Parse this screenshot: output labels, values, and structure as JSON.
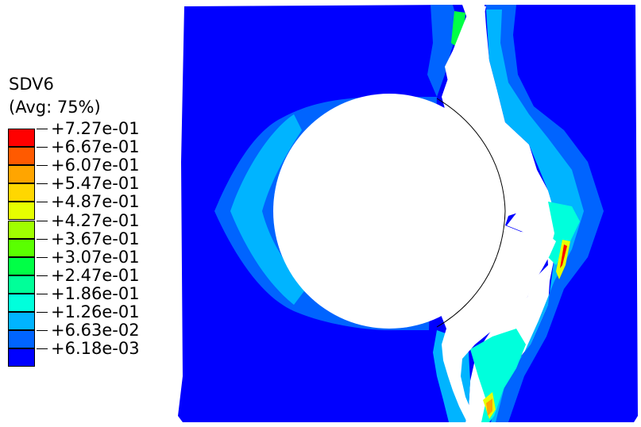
{
  "legend": {
    "title": "SDV6",
    "subtitle": "(Avg: 75%)",
    "bands": [
      {
        "label": "+7.27e-01",
        "color": "#ff0000"
      },
      {
        "label": "+6.67e-01",
        "color": "#ff5a00"
      },
      {
        "label": "+6.07e-01",
        "color": "#ffa500"
      },
      {
        "label": "+5.47e-01",
        "color": "#ffd700"
      },
      {
        "label": "+4.87e-01",
        "color": "#e6ff00"
      },
      {
        "label": "+4.27e-01",
        "color": "#a0ff00"
      },
      {
        "label": "+3.67e-01",
        "color": "#5aff00"
      },
      {
        "label": "+3.07e-01",
        "color": "#00ff46"
      },
      {
        "label": "+2.47e-01",
        "color": "#00ff99"
      },
      {
        "label": "+1.86e-01",
        "color": "#00ffdc"
      },
      {
        "label": "+1.26e-01",
        "color": "#00b4ff"
      },
      {
        "label": "+6.63e-02",
        "color": "#0064ff"
      },
      {
        "label": "+6.18e-03",
        "color": "#0000ff"
      }
    ]
  },
  "plot": {
    "base_color": "#0000ff",
    "halo_color": "#0064ff",
    "light_color": "#00b4ff",
    "cyan_color": "#00ffdc",
    "green_color": "#00ff46",
    "yellow_color": "#e6ff00",
    "orange_color": "#ffa500",
    "red_color": "#ff0000",
    "hole_color": "#ffffff"
  }
}
